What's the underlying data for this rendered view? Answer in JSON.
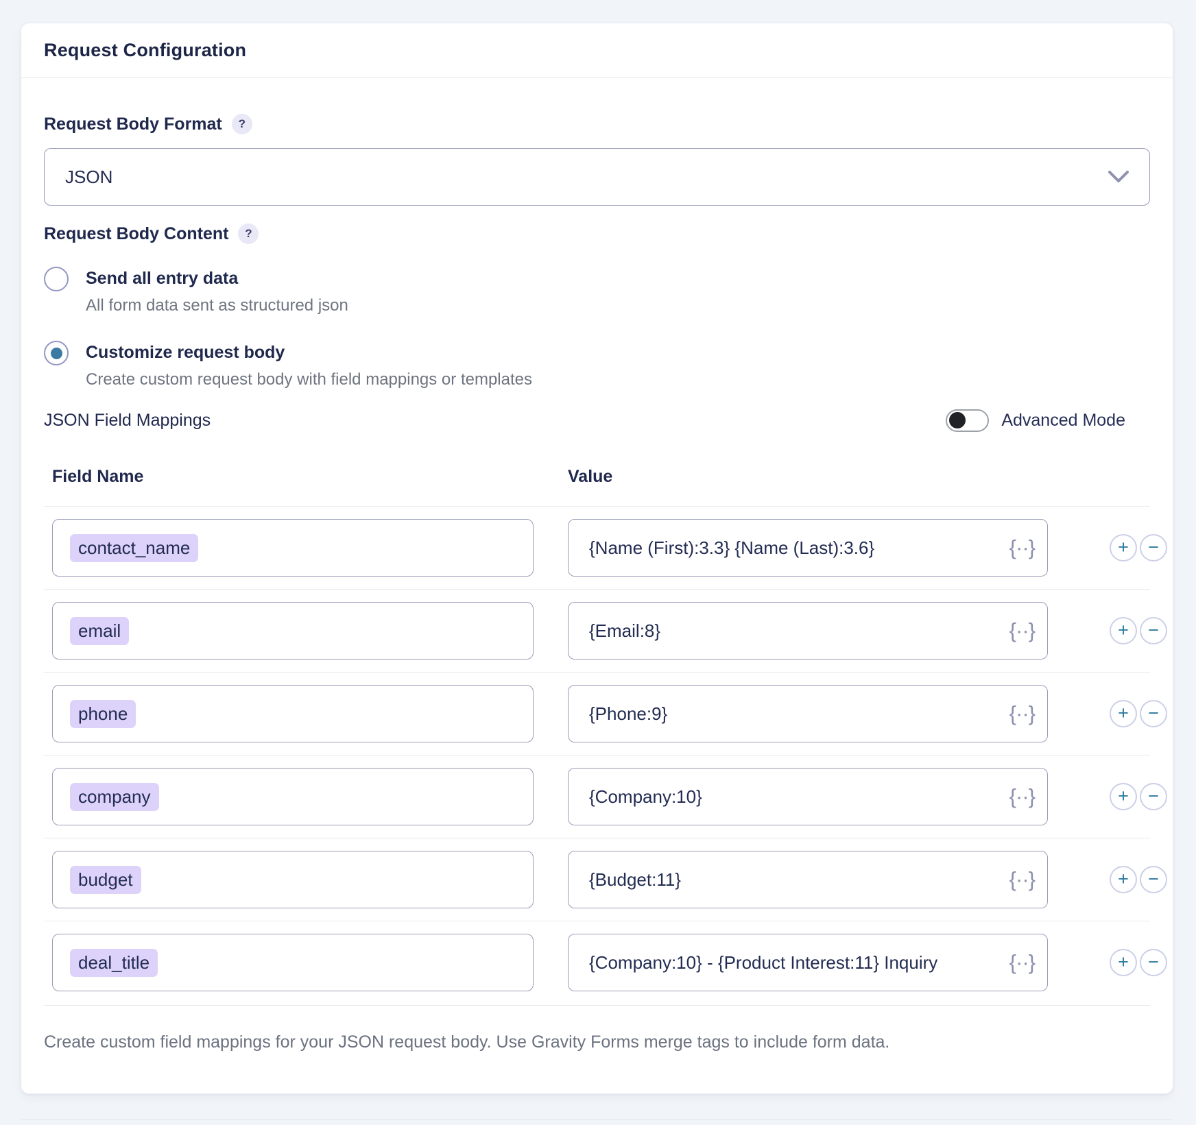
{
  "card": {
    "title": "Request Configuration",
    "request_body_format": {
      "label": "Request Body Format",
      "help": "?",
      "selected_option": "JSON"
    },
    "request_body_content": {
      "label": "Request Body Content",
      "help": "?",
      "options": [
        {
          "label": "Send all entry data",
          "description": "All form data sent as structured json",
          "selected": false
        },
        {
          "label": "Customize request body",
          "description": "Create custom request body with field mappings or templates",
          "selected": true
        }
      ]
    },
    "mappings": {
      "label": "JSON Field Mappings",
      "advanced_mode_label": "Advanced Mode",
      "advanced_mode_on": false,
      "columns": {
        "field_name": "Field Name",
        "value": "Value"
      },
      "rows": [
        {
          "field_name": "contact_name",
          "value": "{Name (First):3.3} {Name (Last):3.6}"
        },
        {
          "field_name": "email",
          "value": "{Email:8}"
        },
        {
          "field_name": "phone",
          "value": "{Phone:9}"
        },
        {
          "field_name": "company",
          "value": "{Company:10}"
        },
        {
          "field_name": "budget",
          "value": "{Budget:11}"
        },
        {
          "field_name": "deal_title",
          "value": "{Company:10} - {Product Interest:11} Inquiry"
        }
      ],
      "footer": "Create custom field mappings for your JSON request body. Use Gravity Forms merge tags to include form data."
    },
    "icons": {
      "merge_tag": "{··}",
      "add": "+",
      "remove": "−",
      "help": "?"
    },
    "colors": {
      "accent_teal_blue": "#2f7da1",
      "chip_lavender": "#ddd2fa",
      "help_badge_bg": "#e9e8f7",
      "input_border": "#9a9db8",
      "toggle_knob": "#212227",
      "page_background": "#f1f5f9",
      "radio_selected_dot": "#3a7ba3"
    }
  }
}
